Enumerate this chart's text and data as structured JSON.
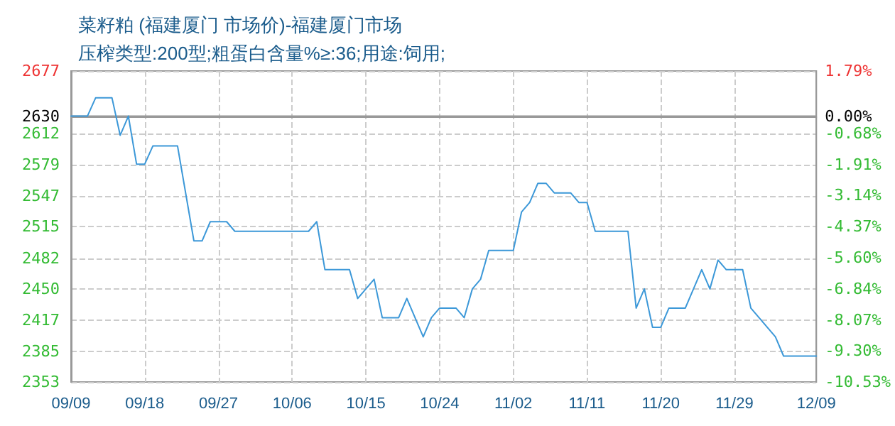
{
  "chart_data": {
    "type": "line",
    "title": "菜籽粕 (福建厦门 市场价)-福建厦门市场",
    "subtitle": "压榨类型:200型;粗蛋白含量%≥:36;用途:饲用;",
    "series": [
      {
        "color": "#3c98d8",
        "x": [
          "--09-09",
          "--09-11",
          "--09-12",
          "--09-14",
          "--09-15",
          "--09-16",
          "--09-17",
          "--09-18",
          "--09-19",
          "--09-22",
          "--09-24",
          "--09-25",
          "--09-26",
          "--09-28",
          "--09-29",
          "--10-08",
          "--10-09",
          "--10-10",
          "--10-13",
          "--10-14",
          "--10-16",
          "--10-17",
          "--10-19",
          "--10-20",
          "--10-22",
          "--10-23",
          "--10-24",
          "--10-26",
          "--10-27",
          "--10-28",
          "--10-29",
          "--10-30",
          "--11-02",
          "--11-03",
          "--11-04",
          "--11-05",
          "--11-06",
          "--11-07",
          "--11-09",
          "--11-10",
          "--11-11",
          "--11-12",
          "--11-16",
          "--11-17",
          "--11-18",
          "--11-19",
          "--11-20",
          "--11-21",
          "--11-23",
          "--11-24",
          "--11-25",
          "--11-26",
          "--11-27",
          "--11-28",
          "--11-30",
          "--12-01",
          "--12-02",
          "--12-03",
          "--12-04",
          "--12-05",
          "--12-09"
        ],
        "values": [
          2630,
          2630,
          2649,
          2649,
          2610,
          2630,
          2580,
          2580,
          2599,
          2599,
          2500,
          2500,
          2520,
          2520,
          2510,
          2510,
          2520,
          2470,
          2470,
          2440,
          2460,
          2420,
          2420,
          2440,
          2400,
          2420,
          2430,
          2430,
          2420,
          2450,
          2460,
          2490,
          2490,
          2530,
          2540,
          2560,
          2560,
          2550,
          2550,
          2540,
          2540,
          2510,
          2510,
          2430,
          2450,
          2410,
          2410,
          2430,
          2430,
          2450,
          2470,
          2450,
          2480,
          2470,
          2470,
          2430,
          2420,
          2410,
          2400,
          2380,
          2380
        ]
      }
    ],
    "xlim": [
      "--09-09",
      "--12-09"
    ],
    "xticks": [
      {
        "value": "--09-09",
        "label": "09/09"
      },
      {
        "value": "--09-18",
        "label": "09/18"
      },
      {
        "value": "--09-27",
        "label": "09/27"
      },
      {
        "value": "--10-06",
        "label": "10/06"
      },
      {
        "value": "--10-15",
        "label": "10/15"
      },
      {
        "value": "--10-24",
        "label": "10/24"
      },
      {
        "value": "--11-02",
        "label": "11/02"
      },
      {
        "value": "--11-11",
        "label": "11/11"
      },
      {
        "value": "--11-20",
        "label": "11/20"
      },
      {
        "value": "--11-29",
        "label": "11/29"
      },
      {
        "value": "--12-09",
        "label": "12/09"
      }
    ],
    "ylim": [
      2353,
      2677
    ],
    "yticks": [
      2353,
      2385,
      2417,
      2450,
      2482,
      2515,
      2547,
      2579,
      2612,
      2630,
      2677
    ],
    "y2lim": [
      -10.53,
      1.79
    ],
    "y2ticks": [
      {
        "value": -10.53,
        "label": "-10.53%"
      },
      {
        "value": -9.3,
        "label": "-9.30%"
      },
      {
        "value": -8.07,
        "label": "-8.07%"
      },
      {
        "value": -6.84,
        "label": "-6.84%"
      },
      {
        "value": -5.6,
        "label": "-5.60%"
      },
      {
        "value": -4.37,
        "label": "-4.37%"
      },
      {
        "value": -3.14,
        "label": "-3.14%"
      },
      {
        "value": -1.91,
        "label": "-1.91%"
      },
      {
        "value": -0.68,
        "label": "-0.68%"
      },
      {
        "value": 0,
        "label": "0.00%"
      },
      {
        "value": 1.79,
        "label": "1.79%"
      }
    ],
    "ref_lines": [
      {
        "axis": "y",
        "value": 2630,
        "color": "#999999"
      }
    ],
    "grid": true,
    "marker": "none",
    "line_style": "solid"
  }
}
